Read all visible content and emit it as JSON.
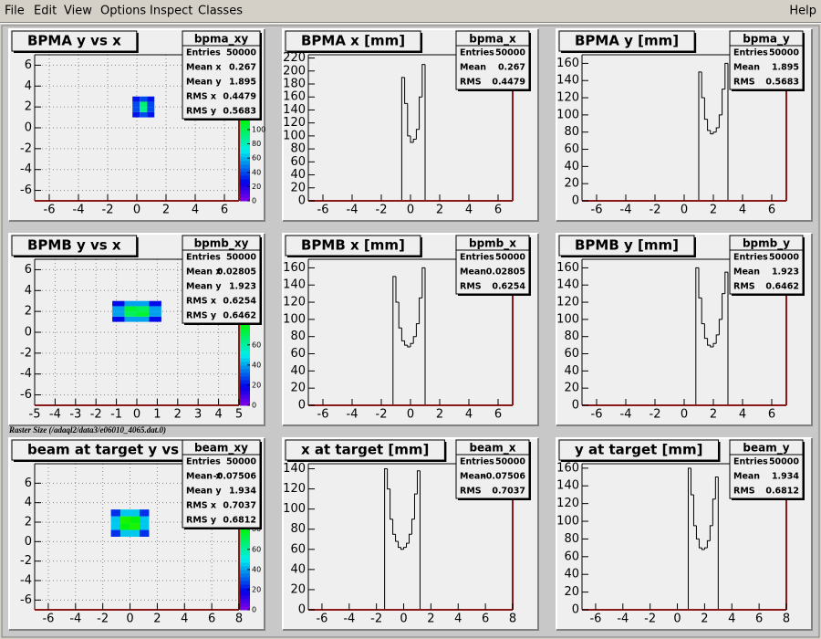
{
  "menu": {
    "items": [
      "File",
      "Edit",
      "View",
      "Options",
      "Inspect",
      "Classes"
    ],
    "help": "Help"
  },
  "caption": "Raster Size (/adaql2/data3/e06010_4065.dat.0)",
  "chart_data": [
    {
      "type": "heatmap",
      "title": "BPMA y vs x",
      "xbins": [
        -0.3,
        0.2,
        0.7,
        1.2
      ],
      "ybins": [
        1,
        1.5,
        2,
        2.5,
        3
      ],
      "counts": [
        [
          30,
          40,
          30
        ],
        [
          40,
          90,
          40
        ],
        [
          40,
          95,
          40
        ],
        [
          30,
          40,
          30
        ]
      ],
      "xlim": [
        -7,
        7
      ],
      "ylim": [
        -7,
        7
      ],
      "xticks": [
        -6,
        -4,
        -2,
        0,
        2,
        4,
        6
      ],
      "yticks": [
        -6,
        -4,
        -2,
        0,
        2,
        4,
        6
      ],
      "zlim": [
        0,
        205
      ],
      "zticks": [
        0,
        20,
        40,
        60,
        80,
        100
      ],
      "grid": true,
      "stats": {
        "name": "bpma_xy",
        "rows": [
          {
            "label": "Entries",
            "value": 50000
          },
          {
            "label": "Mean x",
            "value": 0.267
          },
          {
            "label": "Mean y",
            "value": 1.895
          },
          {
            "label": "RMS x",
            "value": 0.4479
          },
          {
            "label": "RMS y",
            "value": 0.5683
          }
        ]
      }
    },
    {
      "type": "histogram",
      "title": "BPMA x [mm]",
      "color": "#000000",
      "bins": [
        -0.8,
        -0.6,
        -0.4,
        -0.2,
        0,
        0.2,
        0.4,
        0.6,
        0.8,
        1.0,
        1.2
      ],
      "counts": [
        0,
        190,
        150,
        100,
        90,
        95,
        110,
        160,
        210,
        0
      ],
      "xlim": [
        -7,
        7
      ],
      "ylim": [
        0,
        225
      ],
      "xticks": [
        -6,
        -4,
        -2,
        0,
        2,
        4,
        6
      ],
      "yticks": [
        0,
        20,
        40,
        60,
        80,
        100,
        120,
        140,
        160,
        180,
        200,
        220
      ],
      "stats": {
        "name": "bpma_x",
        "rows": [
          {
            "label": "Entries",
            "value": 50000
          },
          {
            "label": "Mean",
            "value": 0.267
          },
          {
            "label": "RMS",
            "value": 0.4479
          }
        ]
      }
    },
    {
      "type": "histogram",
      "title": "BPMA y [mm]",
      "color": "#000000",
      "bins": [
        0.8,
        1.0,
        1.2,
        1.4,
        1.6,
        1.8,
        2.0,
        2.2,
        2.4,
        2.6,
        2.8,
        3.0,
        3.2
      ],
      "counts": [
        0,
        150,
        120,
        95,
        82,
        78,
        80,
        85,
        100,
        130,
        160,
        0
      ],
      "xlim": [
        -7,
        7
      ],
      "ylim": [
        0,
        170
      ],
      "xticks": [
        -6,
        -4,
        -2,
        0,
        2,
        4,
        6
      ],
      "yticks": [
        0,
        20,
        40,
        60,
        80,
        100,
        120,
        140,
        160
      ],
      "stats": {
        "name": "bpma_y",
        "rows": [
          {
            "label": "Entries",
            "value": 50000
          },
          {
            "label": "Mean",
            "value": 1.895
          },
          {
            "label": "RMS",
            "value": 0.5683
          }
        ]
      }
    },
    {
      "type": "heatmap",
      "title": "BPMB y vs x",
      "xbins": [
        -1.2,
        -0.6,
        0,
        0.6,
        1.2
      ],
      "ybins": [
        1,
        1.5,
        2,
        2.5,
        3
      ],
      "counts": [
        [
          20,
          40,
          40,
          20
        ],
        [
          40,
          70,
          75,
          40
        ],
        [
          40,
          75,
          70,
          40
        ],
        [
          20,
          40,
          40,
          20
        ]
      ],
      "xlim": [
        -5,
        5
      ],
      "ylim": [
        -7,
        7
      ],
      "xticks": [
        -5,
        -4,
        -3,
        -2,
        -1,
        0,
        1,
        2,
        3,
        4,
        5
      ],
      "yticks": [
        -6,
        -4,
        -2,
        0,
        2,
        4,
        6
      ],
      "zlim": [
        0,
        145
      ],
      "zticks": [
        0,
        20,
        40,
        60
      ],
      "grid": true,
      "stats": {
        "name": "bpmb_xy",
        "rows": [
          {
            "label": "Entries",
            "value": 50000
          },
          {
            "label": "Mean x",
            "value": 0.02805
          },
          {
            "label": "Mean y",
            "value": 1.923
          },
          {
            "label": "RMS x",
            "value": 0.6254
          },
          {
            "label": "RMS y",
            "value": 0.6462
          }
        ]
      }
    },
    {
      "type": "histogram",
      "title": "BPMB x [mm]",
      "color": "#000000",
      "bins": [
        -1.4,
        -1.2,
        -1.0,
        -0.8,
        -0.6,
        -0.4,
        -0.2,
        0,
        0.2,
        0.4,
        0.6,
        0.8,
        1.0,
        1.2
      ],
      "counts": [
        0,
        150,
        120,
        90,
        75,
        70,
        68,
        72,
        80,
        95,
        125,
        160,
        0
      ],
      "xlim": [
        -7,
        7
      ],
      "ylim": [
        0,
        170
      ],
      "xticks": [
        -6,
        -4,
        -2,
        0,
        2,
        4,
        6
      ],
      "yticks": [
        0,
        20,
        40,
        60,
        80,
        100,
        120,
        140,
        160
      ],
      "stats": {
        "name": "bpmb_x",
        "rows": [
          {
            "label": "Entries",
            "value": 50000
          },
          {
            "label": "Mean",
            "value": 0.02805
          },
          {
            "label": "RMS",
            "value": 0.6254
          }
        ]
      }
    },
    {
      "type": "histogram",
      "title": "BPMB y [mm]",
      "color": "#000000",
      "bins": [
        0.6,
        0.8,
        1.0,
        1.2,
        1.4,
        1.6,
        1.8,
        2.0,
        2.2,
        2.4,
        2.6,
        2.8,
        3.0,
        3.2
      ],
      "counts": [
        0,
        160,
        125,
        95,
        78,
        70,
        68,
        72,
        82,
        100,
        130,
        155,
        0
      ],
      "xlim": [
        -7,
        7
      ],
      "ylim": [
        0,
        170
      ],
      "xticks": [
        -6,
        -4,
        -2,
        0,
        2,
        4,
        6
      ],
      "yticks": [
        0,
        20,
        40,
        60,
        80,
        100,
        120,
        140,
        160
      ],
      "stats": {
        "name": "bpmb_y",
        "rows": [
          {
            "label": "Entries",
            "value": 50000
          },
          {
            "label": "Mean",
            "value": 1.923
          },
          {
            "label": "RMS",
            "value": 0.6462
          }
        ]
      }
    },
    {
      "type": "heatmap",
      "title": "beam at target y vs x",
      "xbins": [
        -1.4,
        -0.7,
        0,
        0.7,
        1.4
      ],
      "ybins": [
        0.5,
        1.2,
        1.9,
        2.6,
        3.3
      ],
      "counts": [
        [
          25,
          45,
          45,
          25
        ],
        [
          45,
          80,
          85,
          45
        ],
        [
          45,
          85,
          80,
          45
        ],
        [
          25,
          45,
          45,
          25
        ]
      ],
      "xlim": [
        -7,
        8
      ],
      "ylim": [
        -7,
        8
      ],
      "xticks": [
        -6,
        -4,
        -2,
        0,
        2,
        4,
        6,
        8
      ],
      "yticks": [
        -6,
        -4,
        -2,
        0,
        2,
        4,
        6
      ],
      "zlim": [
        0,
        145
      ],
      "zticks": [
        0,
        20,
        40,
        60,
        80
      ],
      "grid": true,
      "stats": {
        "name": "beam_xy",
        "rows": [
          {
            "label": "Entries",
            "value": 50000
          },
          {
            "label": "Mean x",
            "value": -0.07506
          },
          {
            "label": "Mean y",
            "value": 1.934
          },
          {
            "label": "RMS x",
            "value": 0.7037
          },
          {
            "label": "RMS y",
            "value": 0.6812
          }
        ]
      }
    },
    {
      "type": "histogram",
      "title": "x at target [mm]",
      "color": "#000000",
      "bins": [
        -1.6,
        -1.4,
        -1.2,
        -1.0,
        -0.8,
        -0.6,
        -0.4,
        -0.2,
        0,
        0.2,
        0.4,
        0.6,
        0.8,
        1.0,
        1.2,
        1.4
      ],
      "counts": [
        0,
        140,
        120,
        90,
        75,
        68,
        62,
        60,
        62,
        66,
        75,
        90,
        115,
        138,
        0
      ],
      "xlim": [
        -7,
        8
      ],
      "ylim": [
        0,
        145
      ],
      "xticks": [
        -6,
        -4,
        -2,
        0,
        2,
        4,
        6,
        8
      ],
      "yticks": [
        0,
        20,
        40,
        60,
        80,
        100,
        120,
        140
      ],
      "stats": {
        "name": "beam_x",
        "rows": [
          {
            "label": "Entries",
            "value": 50000
          },
          {
            "label": "Mean",
            "value": -0.07506
          },
          {
            "label": "RMS",
            "value": 0.7037
          }
        ]
      }
    },
    {
      "type": "histogram",
      "title": "y at target [mm]",
      "color": "#000000",
      "bins": [
        0.6,
        0.8,
        1.0,
        1.2,
        1.4,
        1.6,
        1.8,
        2.0,
        2.2,
        2.4,
        2.6,
        2.8,
        3.0,
        3.2
      ],
      "counts": [
        0,
        160,
        130,
        95,
        80,
        70,
        68,
        70,
        78,
        95,
        125,
        150,
        0
      ],
      "xlim": [
        -7,
        8
      ],
      "ylim": [
        0,
        165
      ],
      "xticks": [
        -6,
        -4,
        -2,
        0,
        2,
        4,
        6,
        8
      ],
      "yticks": [
        0,
        20,
        40,
        60,
        80,
        100,
        120,
        140,
        160
      ],
      "stats": {
        "name": "beam_y",
        "rows": [
          {
            "label": "Entries",
            "value": 50000
          },
          {
            "label": "Mean",
            "value": 1.934
          },
          {
            "label": "RMS",
            "value": 0.6812
          }
        ]
      }
    }
  ]
}
